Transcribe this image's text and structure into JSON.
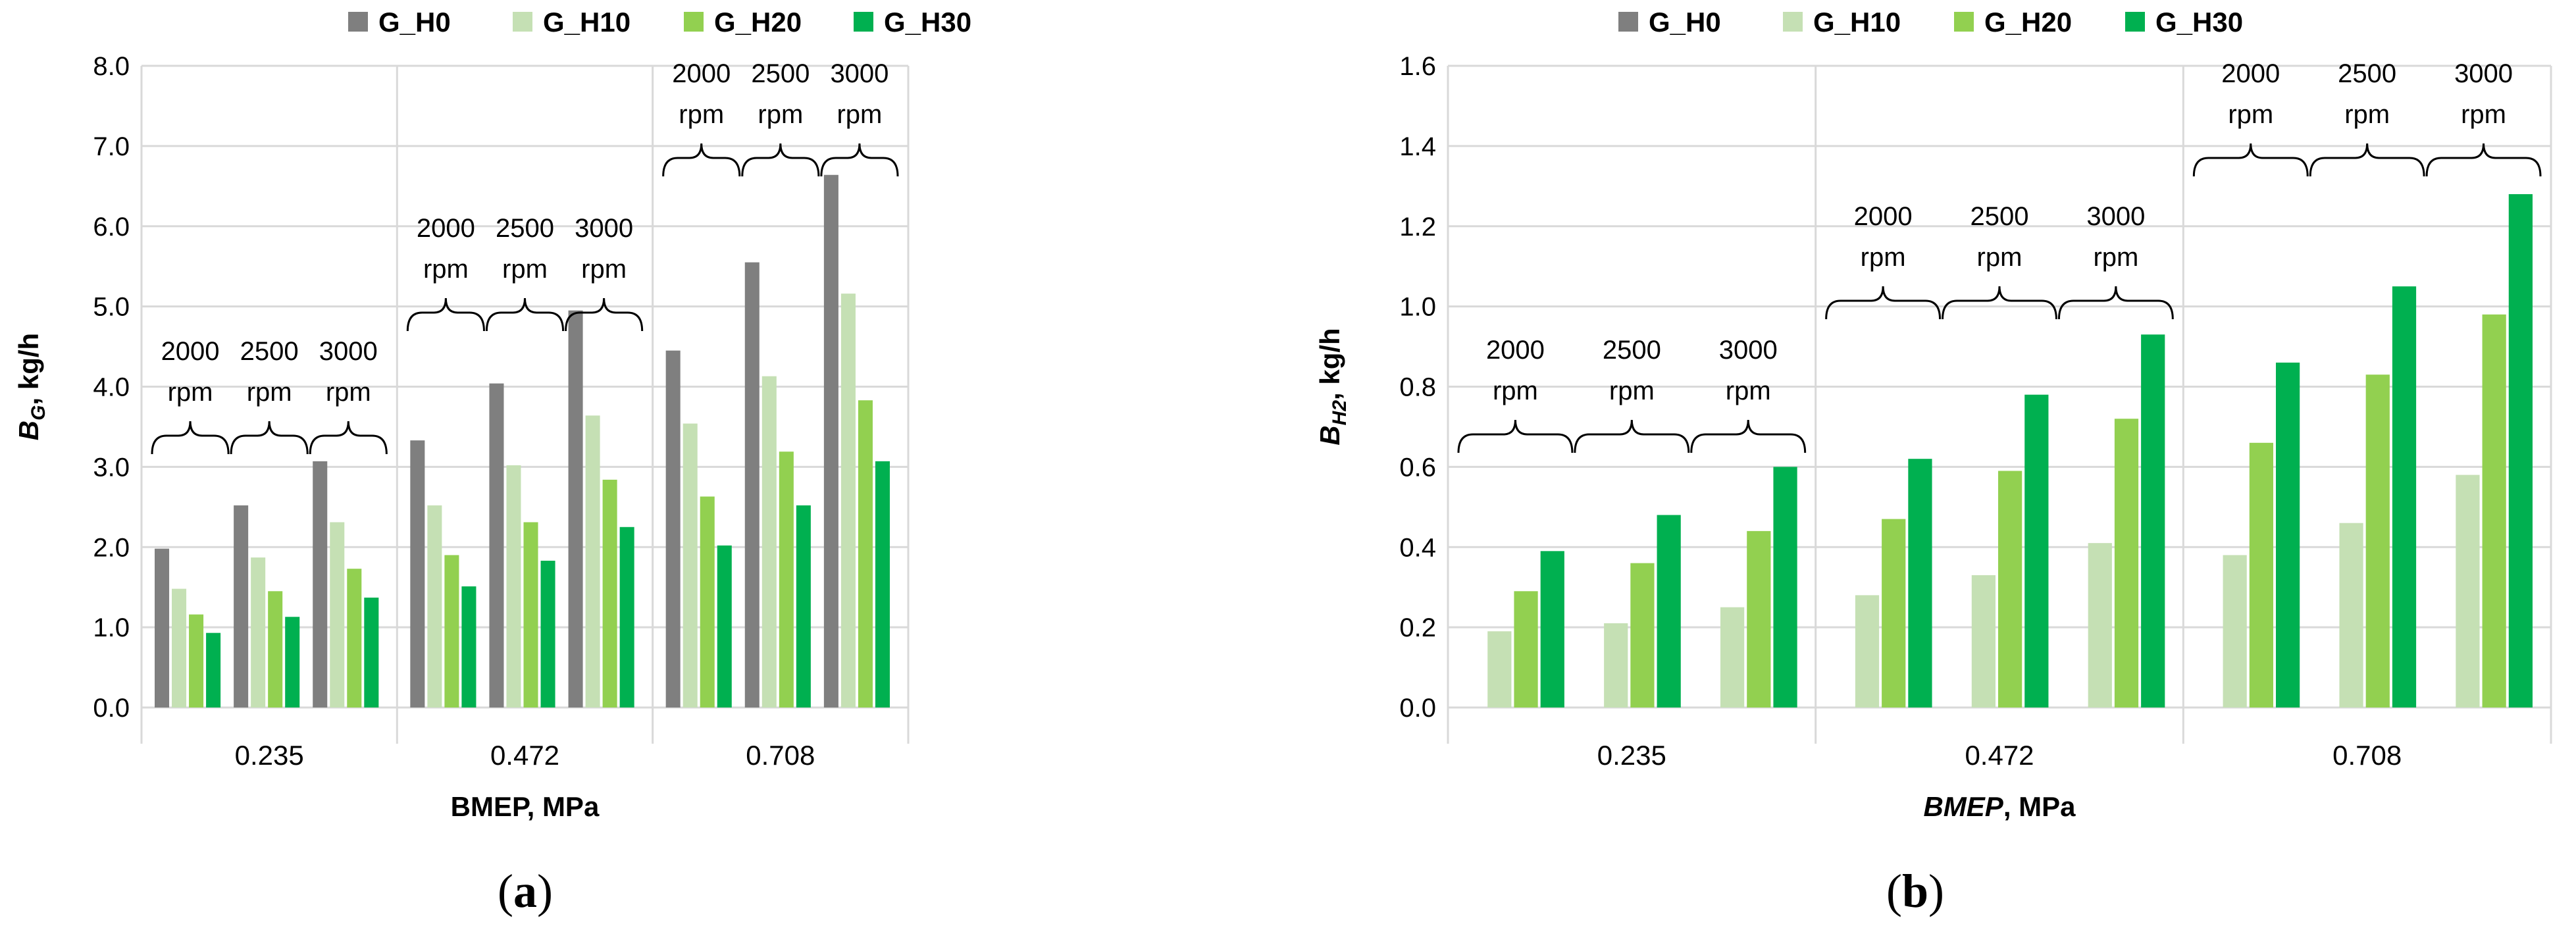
{
  "chart_data": [
    {
      "type": "bar",
      "panel": "(a)",
      "panel_prefix": "(",
      "panel_letter": "a",
      "panel_suffix": ")",
      "ylabel_symbol": "B",
      "ylabel_sub": "G",
      "ylabel_rest": ", kg/h",
      "xlabel_italic": "",
      "xlabel_rest": "BMEP, MPa",
      "ylim": [
        0,
        8
      ],
      "yticks": [
        "0.0",
        "1.0",
        "2.0",
        "3.0",
        "4.0",
        "5.0",
        "6.0",
        "7.0",
        "8.0"
      ],
      "categories": [
        "0.235",
        "0.472",
        "0.708"
      ],
      "subgroups": [
        "2000 rpm",
        "2500 rpm",
        "3000 rpm"
      ],
      "annotations": [
        {
          "group": 0,
          "lines": [
            [
              "2000",
              "rpm"
            ],
            [
              "2500",
              "rpm"
            ],
            [
              "3000",
              "rpm"
            ]
          ]
        },
        {
          "group": 1,
          "lines": [
            [
              "2000",
              "rpm"
            ],
            [
              "2500",
              "rpm"
            ],
            [
              "3000",
              "rpm"
            ]
          ]
        },
        {
          "group": 2,
          "lines": [
            [
              "2000",
              "rpm"
            ],
            [
              "2500",
              "rpm"
            ],
            [
              "3000",
              "rpm"
            ]
          ]
        }
      ],
      "legend": [
        "G_H0",
        "G_H10",
        "G_H20",
        "G_H30"
      ],
      "series": [
        {
          "name": "G_H0",
          "color": "#7f7f7f",
          "values": [
            [
              1.98,
              2.52,
              3.07
            ],
            [
              3.33,
              4.04,
              4.95
            ],
            [
              4.45,
              5.55,
              6.64
            ]
          ]
        },
        {
          "name": "G_H10",
          "color": "#c5e0b4",
          "values": [
            [
              1.48,
              1.87,
              2.31
            ],
            [
              2.52,
              3.02,
              3.64
            ],
            [
              3.54,
              4.13,
              5.16
            ]
          ]
        },
        {
          "name": "G_H20",
          "color": "#92d050",
          "values": [
            [
              1.16,
              1.45,
              1.73
            ],
            [
              1.9,
              2.31,
              2.84
            ],
            [
              2.63,
              3.19,
              3.83
            ]
          ]
        },
        {
          "name": "G_H30",
          "color": "#00b050",
          "values": [
            [
              0.93,
              1.13,
              1.37
            ],
            [
              1.51,
              1.83,
              2.25
            ],
            [
              2.02,
              2.52,
              3.07
            ]
          ]
        }
      ]
    },
    {
      "type": "bar",
      "panel": "(b)",
      "panel_prefix": "(",
      "panel_letter": "b",
      "panel_suffix": ")",
      "ylabel_symbol": "B",
      "ylabel_sub": "H2",
      "ylabel_rest": ", kg/h",
      "xlabel_italic": "BMEP",
      "xlabel_rest": ", MPa",
      "ylim": [
        0,
        1.6
      ],
      "yticks": [
        "0.0",
        "0.2",
        "0.4",
        "0.6",
        "0.8",
        "1.0",
        "1.2",
        "1.4",
        "1.6"
      ],
      "categories": [
        "0.235",
        "0.472",
        "0.708"
      ],
      "subgroups": [
        "2000 rpm",
        "2500 rpm",
        "3000 rpm"
      ],
      "annotations": [
        {
          "group": 0,
          "lines": [
            [
              "2000",
              "rpm"
            ],
            [
              "2500",
              "rpm"
            ],
            [
              "3000",
              "rpm"
            ]
          ]
        },
        {
          "group": 1,
          "lines": [
            [
              "2000",
              "rpm"
            ],
            [
              "2500",
              "rpm"
            ],
            [
              "3000",
              "rpm"
            ]
          ]
        },
        {
          "group": 2,
          "lines": [
            [
              "2000",
              "rpm"
            ],
            [
              "2500",
              "rpm"
            ],
            [
              "3000",
              "rpm"
            ]
          ]
        }
      ],
      "legend": [
        "G_H0",
        "G_H10",
        "G_H20",
        "G_H30"
      ],
      "series": [
        {
          "name": "G_H0",
          "color": "#7f7f7f",
          "values": [
            [
              0,
              0,
              0
            ],
            [
              0,
              0,
              0
            ],
            [
              0,
              0,
              0
            ]
          ]
        },
        {
          "name": "G_H10",
          "color": "#c5e0b4",
          "values": [
            [
              0.19,
              0.21,
              0.25
            ],
            [
              0.28,
              0.33,
              0.41
            ],
            [
              0.38,
              0.46,
              0.58
            ]
          ]
        },
        {
          "name": "G_H20",
          "color": "#92d050",
          "values": [
            [
              0.29,
              0.36,
              0.44
            ],
            [
              0.47,
              0.59,
              0.72
            ],
            [
              0.66,
              0.83,
              0.98
            ]
          ]
        },
        {
          "name": "G_H30",
          "color": "#00b050",
          "values": [
            [
              0.39,
              0.48,
              0.6
            ],
            [
              0.62,
              0.78,
              0.93
            ],
            [
              0.86,
              1.05,
              1.28
            ]
          ]
        }
      ]
    }
  ]
}
